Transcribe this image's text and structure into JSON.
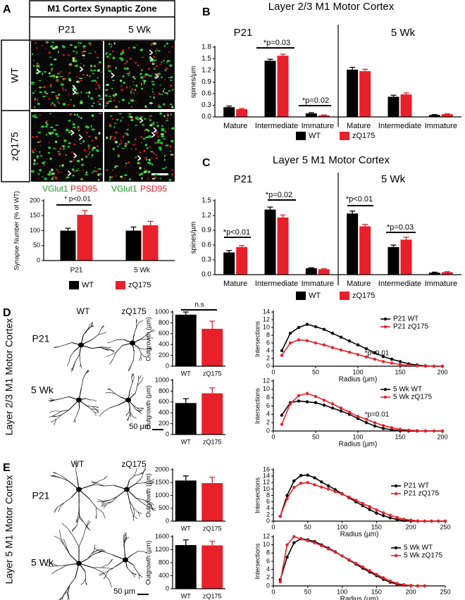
{
  "figure": {
    "panel_labels": [
      "A",
      "B",
      "C",
      "D",
      "E"
    ],
    "synaptic_zone": {
      "title": "M1 Cortex Synaptic Zone",
      "columns": [
        "P21",
        "5 Wk"
      ],
      "rows": [
        "WT",
        "zQ175"
      ],
      "stains": [
        "VGlut1",
        "PSD95"
      ]
    },
    "morphology": [
      {
        "title": "Layer 2/3 M1 Motor Cortex",
        "columns": [
          "WT",
          "zQ175"
        ],
        "rows": [
          "P21",
          "5 Wk"
        ],
        "scale_bar": "50 µm"
      },
      {
        "title": "Layer 5 M1 Motor Cortex",
        "columns": [
          "WT",
          "zQ175"
        ],
        "rows": [
          "P21",
          "5 Wk"
        ],
        "scale_bar": "50 µm"
      }
    ]
  },
  "chart_data": [
    {
      "type": "bar",
      "ylabel": "Synapse Number (% of WT)",
      "categories": [
        "P21",
        "5 Wk"
      ],
      "series": [
        {
          "name": "WT",
          "color": "#000000",
          "values": [
            100,
            100
          ],
          "errors": [
            8,
            12
          ]
        },
        {
          "name": "zQ175",
          "color": "#e8202a",
          "values": [
            153,
            118
          ],
          "errors": [
            14,
            13
          ]
        }
      ],
      "ylim": [
        0,
        200
      ],
      "yticks": [
        0,
        50,
        100,
        150,
        200
      ],
      "annotations": [
        "* p<0.01"
      ],
      "legend": "lower center"
    },
    {
      "type": "bar",
      "title": "Layer 2/3 M1 Motor Cortex",
      "ylabel": "spines/µm",
      "groups": [
        "P21",
        "5 Wk"
      ],
      "categories": [
        "Mature",
        "Intermediate",
        "Immature",
        "Mature",
        "Intermediate",
        "Immature"
      ],
      "series": [
        {
          "name": "WT",
          "color": "#000000",
          "values": [
            0.25,
            1.45,
            0.09,
            1.22,
            0.52,
            0.05
          ],
          "errors": [
            0.03,
            0.04,
            0.02,
            0.06,
            0.04,
            0.01
          ]
        },
        {
          "name": "zQ175",
          "color": "#e8202a",
          "values": [
            0.2,
            1.58,
            0.04,
            1.18,
            0.58,
            0.07
          ],
          "errors": [
            0.02,
            0.04,
            0.01,
            0.05,
            0.04,
            0.01
          ]
        }
      ],
      "ylim": [
        0,
        1.8
      ],
      "yticks": [
        {
          "value": 0,
          "label": "0.0"
        },
        0.3,
        0.6,
        0.9,
        1.2,
        1.5,
        1.8
      ],
      "annotations": [
        "*p=0.03",
        "*p=0.02"
      ],
      "legend": "lower center"
    },
    {
      "type": "bar",
      "title": "Layer 5 M1 Motor Cortex",
      "ylabel": "spines/µm",
      "groups": [
        "P21",
        "5 Wk"
      ],
      "categories": [
        "Mature",
        "Intermediate",
        "Immature",
        "Mature",
        "Intermediate",
        "Immature"
      ],
      "series": [
        {
          "name": "WT",
          "color": "#000000",
          "values": [
            0.45,
            1.32,
            0.13,
            1.24,
            0.56,
            0.04
          ],
          "errors": [
            0.04,
            0.05,
            0.01,
            0.05,
            0.04,
            0.01
          ]
        },
        {
          "name": "zQ175",
          "color": "#e8202a",
          "values": [
            0.56,
            1.16,
            0.11,
            0.98,
            0.71,
            0.05
          ],
          "errors": [
            0.03,
            0.05,
            0.01,
            0.04,
            0.05,
            0.01
          ]
        }
      ],
      "ylim": [
        0,
        1.5
      ],
      "yticks": [
        {
          "value": 0,
          "label": "0.0"
        },
        0.3,
        0.6,
        0.9,
        1.2,
        1.5
      ],
      "annotations": [
        "*p<0.01",
        "*p=0.02",
        "*p<0.01",
        "*p=0.03"
      ],
      "legend": "lower center"
    },
    {
      "type": "bar",
      "ylabel": "Outgrowth (µm)",
      "categories": [
        "WT",
        "zQ175"
      ],
      "values": [
        950,
        690
      ],
      "errors": [
        50,
        140
      ],
      "colors": [
        "#000000",
        "#e8202a"
      ],
      "ylim": [
        0,
        1000
      ],
      "yticks": [
        0,
        200,
        400,
        600,
        800,
        1000
      ],
      "annotations": [
        "n.s"
      ]
    },
    {
      "type": "bar",
      "ylabel": "Outgrowth (µm)",
      "categories": [
        "WT",
        "zQ175"
      ],
      "values": [
        580,
        760
      ],
      "errors": [
        80,
        100
      ],
      "colors": [
        "#000000",
        "#e8202a"
      ],
      "ylim": [
        0,
        1000
      ],
      "yticks": [
        0,
        200,
        400,
        600,
        800,
        1000
      ]
    },
    {
      "type": "line",
      "xlabel": "Radius (µm)",
      "ylabel": "Intersections",
      "x": [
        10,
        20,
        30,
        40,
        50,
        60,
        70,
        80,
        90,
        100,
        110,
        120,
        130,
        140,
        150,
        160,
        170,
        180,
        190,
        200
      ],
      "series": [
        {
          "name": "P21 WT",
          "color": "#000000",
          "values": [
            4,
            8.5,
            10,
            10.8,
            10.2,
            9.5,
            8.5,
            7.5,
            6.5,
            5.5,
            4.5,
            3.5,
            2.5,
            1.8,
            1.2,
            0.6,
            0.3,
            0.1,
            0,
            0
          ]
        },
        {
          "name": "P21 zQ175",
          "color": "#e8202a",
          "values": [
            2.8,
            6,
            6.8,
            6.6,
            6,
            5.5,
            4.8,
            4.2,
            3.6,
            3,
            2.4,
            1.8,
            1.2,
            0.8,
            0.4,
            0.2,
            0.1,
            0,
            0,
            0
          ]
        }
      ],
      "xlim": [
        0,
        200
      ],
      "xticks": [
        0,
        50,
        100,
        150,
        200
      ],
      "ylim": [
        0,
        14
      ],
      "yticks": [
        0,
        2,
        4,
        6,
        8,
        10,
        12,
        14
      ],
      "annotations": [
        "*p<0.01"
      ],
      "legend": "upper right"
    },
    {
      "type": "line",
      "xlabel": "Radius (µm)",
      "ylabel": "Intersections",
      "x": [
        10,
        20,
        30,
        40,
        50,
        60,
        70,
        80,
        90,
        100,
        110,
        120,
        130,
        140,
        150,
        160,
        170,
        180,
        190,
        200
      ],
      "series": [
        {
          "name": "5 Wk WT",
          "color": "#000000",
          "values": [
            3.8,
            6.8,
            7.2,
            7,
            6.8,
            6.2,
            5.5,
            4.8,
            4,
            3,
            2,
            1.2,
            0.6,
            0.3,
            0.1,
            0,
            0,
            0,
            0,
            0
          ]
        },
        {
          "name": "5 Wk zQ175",
          "color": "#e8202a",
          "values": [
            1.6,
            6.5,
            8.5,
            9,
            8.3,
            7.4,
            6.5,
            5.5,
            4.5,
            3.5,
            2.8,
            2,
            1.3,
            0.8,
            0.4,
            0.2,
            0.1,
            0,
            0,
            0
          ]
        }
      ],
      "xlim": [
        0,
        200
      ],
      "xticks": [
        0,
        50,
        100,
        150,
        200
      ],
      "ylim": [
        0,
        12
      ],
      "yticks": [
        0,
        2,
        4,
        6,
        8,
        10,
        12
      ],
      "annotations": [
        "*p=0.01"
      ],
      "legend": "upper right"
    },
    {
      "type": "bar",
      "ylabel": "Outgrowth (µm)",
      "categories": [
        "WT",
        "zQ175"
      ],
      "values": [
        1580,
        1480
      ],
      "errors": [
        180,
        230
      ],
      "colors": [
        "#000000",
        "#e8202a"
      ],
      "ylim": [
        0,
        2000
      ],
      "yticks": [
        0,
        500,
        1000,
        1500,
        2000
      ]
    },
    {
      "type": "bar",
      "ylabel": "Outgrowth (µm)",
      "categories": [
        "WT",
        "zQ175"
      ],
      "values": [
        1340,
        1330
      ],
      "errors": [
        160,
        130
      ],
      "colors": [
        "#000000",
        "#e8202a"
      ],
      "ylim": [
        0,
        1600
      ],
      "yticks": [
        0,
        400,
        800,
        1200,
        1600
      ]
    },
    {
      "type": "line",
      "xlabel": "Radius (µm)",
      "ylabel": "Intersections",
      "x": [
        10,
        20,
        30,
        40,
        50,
        60,
        70,
        80,
        90,
        100,
        110,
        120,
        130,
        140,
        150,
        160,
        170,
        180,
        190,
        200,
        210,
        220,
        230,
        240,
        250
      ],
      "series": [
        {
          "name": "P21 WT",
          "color": "#000000",
          "values": [
            1.5,
            8,
            12.5,
            14.2,
            14.3,
            13.5,
            12.2,
            11,
            9.8,
            8.5,
            7.3,
            6,
            4.8,
            3.6,
            2.5,
            1.7,
            1,
            0.5,
            0.2,
            0.1,
            0,
            0,
            0,
            0,
            0
          ]
        },
        {
          "name": "P21 zQ175",
          "color": "#e8202a",
          "values": [
            1.5,
            7,
            10.5,
            11.8,
            12,
            11.3,
            10.6,
            10,
            9.2,
            8.4,
            7.5,
            6.5,
            5.5,
            4.5,
            3.5,
            2.6,
            1.8,
            1.1,
            0.6,
            0.3,
            0.1,
            0,
            0,
            0,
            0
          ]
        }
      ],
      "xlim": [
        0,
        250
      ],
      "xticks": [
        0,
        50,
        100,
        150,
        200,
        250
      ],
      "ylim": [
        0,
        16
      ],
      "yticks": [
        0,
        2,
        4,
        6,
        8,
        10,
        12,
        14,
        16
      ],
      "legend": "upper right"
    },
    {
      "type": "line",
      "xlabel": "Radius (µm)",
      "ylabel": "Intersections",
      "x": [
        10,
        20,
        30,
        40,
        50,
        60,
        70,
        80,
        90,
        100,
        110,
        120,
        130,
        140,
        150,
        160,
        170,
        180,
        190,
        200,
        210,
        220
      ],
      "series": [
        {
          "name": "5 Wk WT",
          "color": "#000000",
          "values": [
            1.5,
            7,
            10.5,
            11.5,
            11.2,
            10.8,
            10,
            9.2,
            8.3,
            7.3,
            6.3,
            5.3,
            4.3,
            3.4,
            2.5,
            1.6,
            0.9,
            0.4,
            0.2,
            0.1,
            0,
            0
          ]
        },
        {
          "name": "5 Wk zQ175",
          "color": "#e8202a",
          "values": [
            1,
            10,
            12,
            11.4,
            11,
            10.5,
            9.8,
            9,
            8.2,
            7.3,
            6.4,
            5.5,
            4.6,
            3.7,
            2.8,
            2,
            1.2,
            0.6,
            0.3,
            0.1,
            0,
            0
          ]
        }
      ],
      "xlim": [
        0,
        250
      ],
      "xticks": [
        0,
        50,
        100,
        150,
        200,
        250
      ],
      "ylim": [
        0,
        12
      ],
      "yticks": [
        0,
        2,
        4,
        6,
        8,
        10,
        12
      ],
      "legend": "upper right"
    }
  ]
}
